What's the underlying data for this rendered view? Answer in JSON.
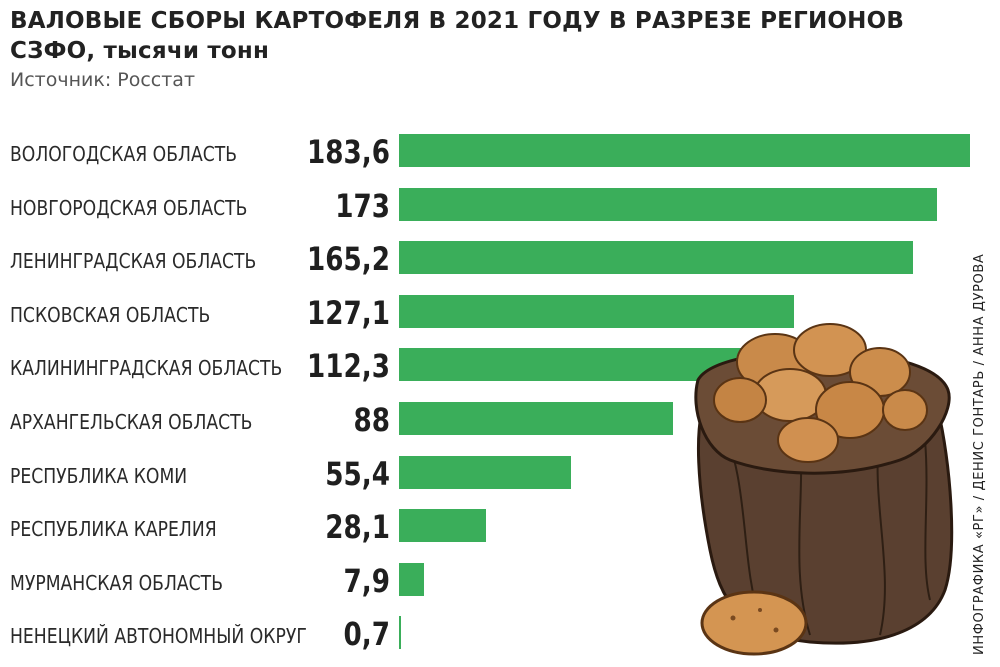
{
  "header": {
    "title_line1": "ВАЛОВЫЕ СБОРЫ КАРТОФЕЛЯ В 2021 ГОДУ В РАЗРЕЗЕ РЕГИОНОВ",
    "title_line2": "СЗФО, тысячи тонн",
    "source": "Источник: Росстат"
  },
  "credit": "ИНФОГРАФИКА «РГ» / ДЕНИС ГОНТАРЬ / АННА ДУРОВА",
  "colors": {
    "bar": "#3aae5a"
  },
  "chart_data": {
    "type": "bar",
    "orientation": "horizontal",
    "categories": [
      "ВОЛОГОДСКАЯ ОБЛАСТЬ",
      "НОВГОРОДСКАЯ ОБЛАСТЬ",
      "ЛЕНИНГРАДСКАЯ ОБЛАСТЬ",
      "ПСКОВСКАЯ ОБЛАСТЬ",
      "КАЛИНИНГРАДСКАЯ ОБЛАСТЬ",
      "АРХАНГЕЛЬСКАЯ ОБЛАСТЬ",
      "РЕСПУБЛИКА КОМИ",
      "РЕСПУБЛИКА КАРЕЛИЯ",
      "МУРМАНСКАЯ ОБЛАСТЬ",
      "НЕНЕЦКИЙ АВТОНОМНЫЙ ОКРУГ"
    ],
    "values": [
      183.6,
      173,
      165.2,
      127.1,
      112.3,
      88,
      55.4,
      28.1,
      7.9,
      0.7
    ],
    "value_labels": [
      "183,6",
      "173",
      "165,2",
      "127,1",
      "112,3",
      "88",
      "55,4",
      "28,1",
      "7,9",
      "0,7"
    ],
    "title": "ВАЛОВЫЕ СБОРЫ КАРТОФЕЛЯ В 2021 ГОДУ В РАЗРЕЗЕ РЕГИОНОВ СЗФО, тысячи тонн",
    "xlabel": "",
    "ylabel": "",
    "xlim": [
      0,
      183.6
    ],
    "grid": false,
    "legend": "none"
  }
}
